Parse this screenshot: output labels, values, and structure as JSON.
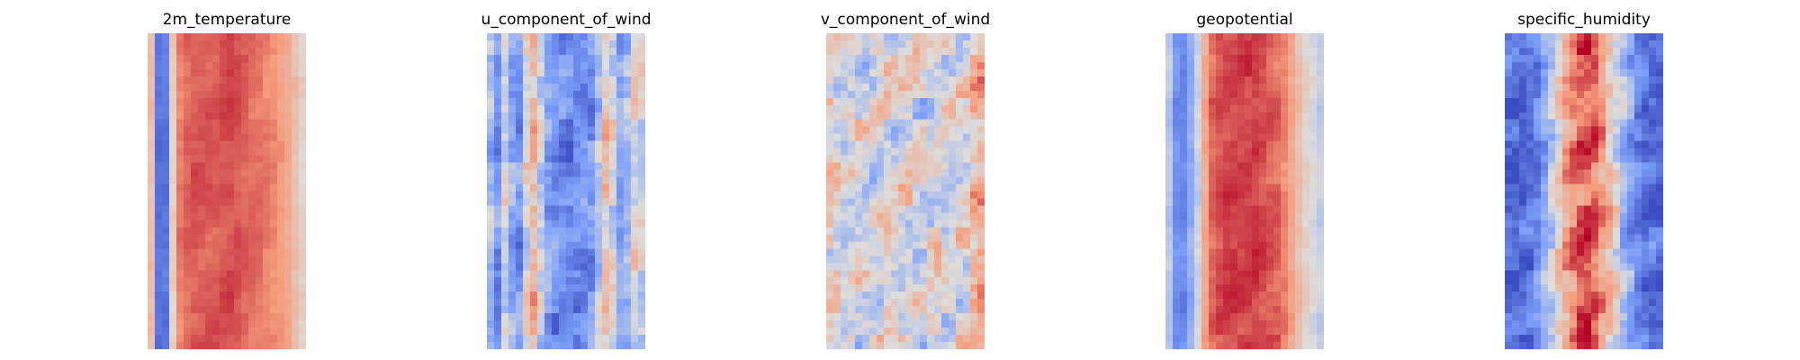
{
  "chart_data": [
    {
      "type": "heatmap",
      "title": "2m_temperature",
      "colormap": "coolwarm",
      "axes": "off",
      "grid": false,
      "cols": 22,
      "rows": 44,
      "profile": [
        0.62,
        0.12,
        0.12,
        0.55,
        0.8,
        0.84,
        0.86,
        0.86,
        0.86,
        0.86,
        0.87,
        0.88,
        0.87,
        0.85,
        0.83,
        0.82,
        0.8,
        0.78,
        0.74,
        0.7,
        0.62,
        0.55
      ]
    },
    {
      "type": "heatmap",
      "title": "u_component_of_wind",
      "colormap": "coolwarm",
      "axes": "off",
      "grid": false,
      "cols": 22,
      "rows": 44,
      "profile": [
        0.35,
        0.2,
        0.45,
        0.28,
        0.22,
        0.5,
        0.65,
        0.45,
        0.25,
        0.2,
        0.22,
        0.2,
        0.2,
        0.22,
        0.25,
        0.4,
        0.6,
        0.5,
        0.3,
        0.35,
        0.5,
        0.45
      ]
    },
    {
      "type": "heatmap",
      "title": "v_component_of_wind",
      "colormap": "coolwarm",
      "axes": "off",
      "grid": false,
      "cols": 22,
      "rows": 44,
      "profile": [
        0.55,
        0.5,
        0.48,
        0.52,
        0.5,
        0.48,
        0.5,
        0.52,
        0.5,
        0.46,
        0.5,
        0.52,
        0.5,
        0.48,
        0.5,
        0.54,
        0.5,
        0.48,
        0.52,
        0.55,
        0.6,
        0.65
      ]
    },
    {
      "type": "heatmap",
      "title": "geopotential",
      "colormap": "coolwarm",
      "axes": "off",
      "grid": false,
      "cols": 22,
      "rows": 44,
      "profile": [
        0.4,
        0.2,
        0.18,
        0.3,
        0.45,
        0.7,
        0.84,
        0.88,
        0.9,
        0.9,
        0.9,
        0.9,
        0.9,
        0.88,
        0.86,
        0.84,
        0.8,
        0.72,
        0.62,
        0.55,
        0.5,
        0.45
      ]
    },
    {
      "type": "heatmap",
      "title": "specific_humidity",
      "colormap": "coolwarm",
      "axes": "off",
      "grid": false,
      "cols": 22,
      "rows": 44,
      "profile": [
        0.08,
        0.06,
        0.08,
        0.12,
        0.18,
        0.3,
        0.42,
        0.55,
        0.68,
        0.76,
        0.85,
        0.88,
        0.82,
        0.72,
        0.62,
        0.5,
        0.38,
        0.28,
        0.2,
        0.14,
        0.1,
        0.08
      ]
    }
  ]
}
